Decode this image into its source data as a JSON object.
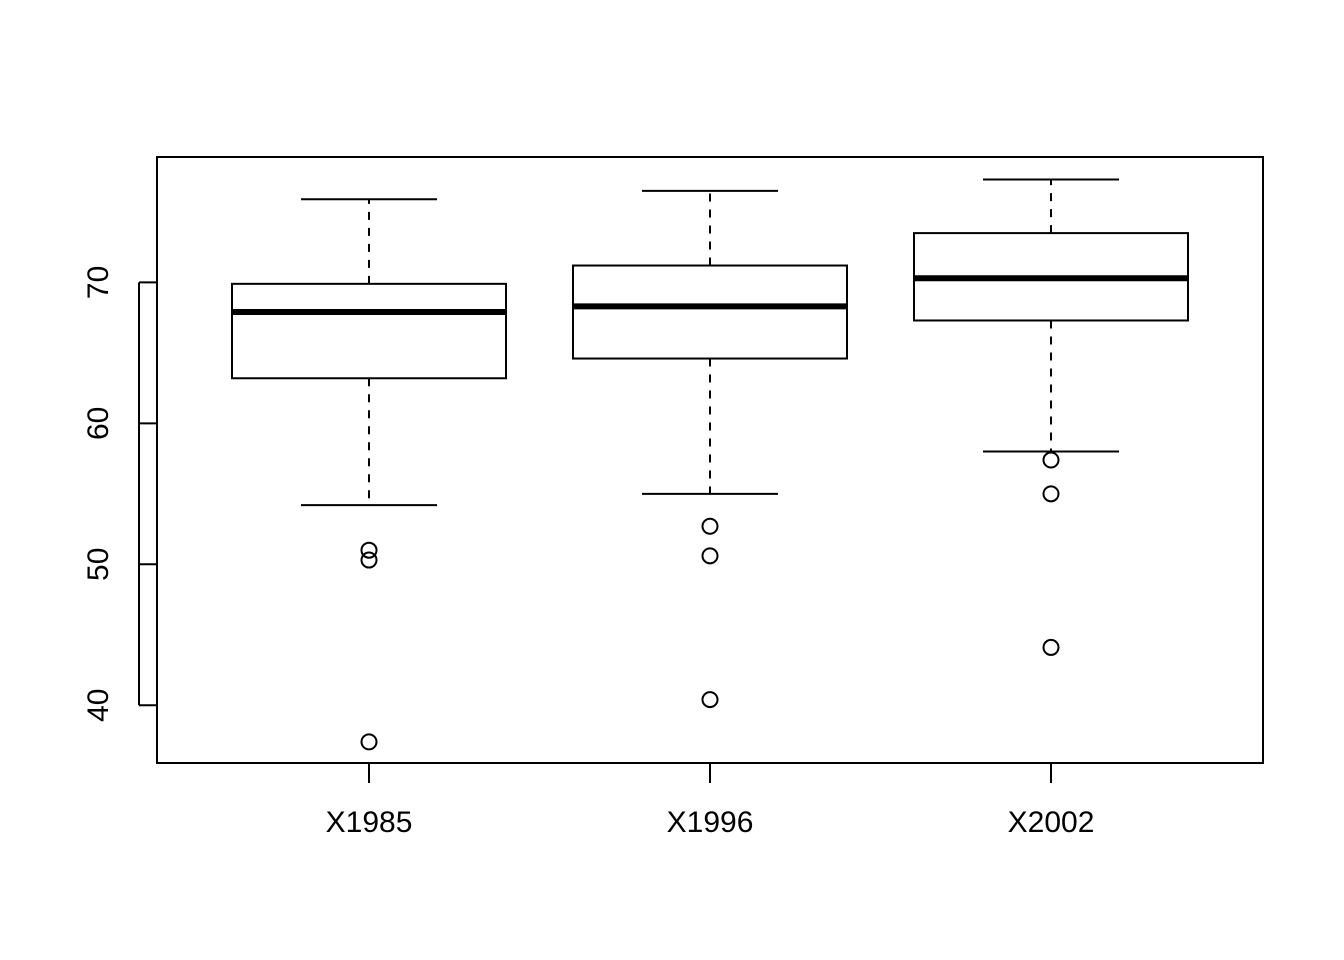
{
  "chart_data": {
    "type": "box",
    "categories": [
      "X1985",
      "X1996",
      "X2002"
    ],
    "boxes": [
      {
        "whisker_low": 54.2,
        "q1": 63.2,
        "median": 67.9,
        "q3": 69.9,
        "whisker_high": 75.9,
        "outliers": [
          51.0,
          50.3,
          37.4
        ]
      },
      {
        "whisker_low": 55.0,
        "q1": 64.6,
        "median": 68.3,
        "q3": 71.2,
        "whisker_high": 76.5,
        "outliers": [
          52.7,
          50.6,
          40.4
        ]
      },
      {
        "whisker_low": 58.0,
        "q1": 67.3,
        "median": 70.3,
        "q3": 73.5,
        "whisker_high": 77.3,
        "outliers": [
          57.4,
          55.0,
          44.1
        ]
      }
    ],
    "color": "#000000",
    "ylim": [
      35.9,
      78.9
    ],
    "yticks": [
      40,
      50,
      60,
      70
    ],
    "grid": false
  }
}
